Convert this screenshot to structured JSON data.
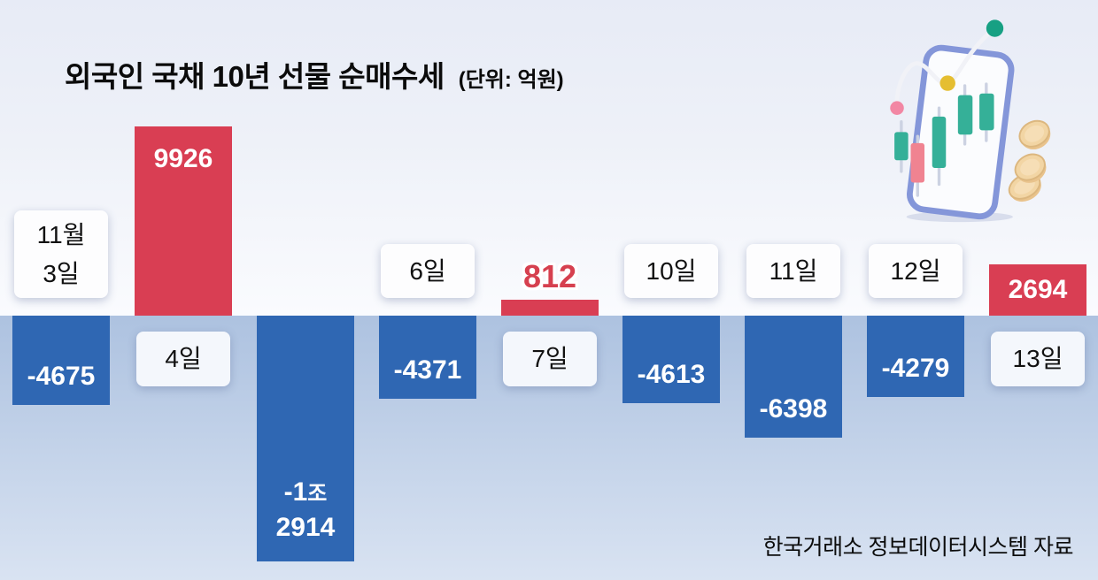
{
  "header": {
    "title": "외국인 국채 10년 선물 순매수세",
    "unit_note": "(단위: 억원)"
  },
  "footer": {
    "source": "한국거래소 정보데이터시스템 자료"
  },
  "colors": {
    "positive_bar": "#d93e53",
    "negative_bar": "#2f67b3",
    "bar_value_text": "#ffffff",
    "outside_value_text": "#d6404f",
    "date_label_text": "#111111",
    "background_top": "#e7ebf6",
    "background_upper_fade": "#fafbfe",
    "background_below_line": "#adc2e0",
    "background_bottom": "#d9e3f2"
  },
  "chart_data": {
    "type": "bar",
    "title": "외국인 국채 10년 선물 순매수세",
    "unit": "억원",
    "categories": [
      "11월 3일",
      "4일",
      "",
      "6일",
      "7일",
      "10일",
      "11일",
      "12일",
      "13일"
    ],
    "values": [
      -4675,
      9926,
      -12914,
      -4371,
      812,
      -4613,
      -6398,
      -4279,
      2694
    ],
    "value_labels": [
      "-4675",
      "9926",
      "-1조 2914",
      "-4371",
      "812",
      "-4613",
      "-6398",
      "-4279",
      "2694"
    ],
    "baseline": 0,
    "ylim": [
      -13000,
      10000
    ],
    "grid": false,
    "legend": false,
    "positive_color": "#d93e53",
    "negative_color": "#2f67b3"
  },
  "bars": [
    {
      "date": "11월 3일",
      "date_lines": [
        "11월",
        "3일"
      ],
      "date_side": "above",
      "value": -4675,
      "value_lines": [
        "-4675"
      ],
      "value_placement": "inside-bottom"
    },
    {
      "date": "4일",
      "date_lines": [
        "4일"
      ],
      "date_side": "below",
      "value": 9926,
      "value_lines": [
        "9926"
      ],
      "value_placement": "inside-top"
    },
    {
      "date": "",
      "date_lines": [],
      "date_side": "none",
      "value": -12914,
      "value_lines": [
        "-1조",
        "2914"
      ],
      "value_placement": "inside-bottom"
    },
    {
      "date": "6일",
      "date_lines": [
        "6일"
      ],
      "date_side": "above",
      "value": -4371,
      "value_lines": [
        "-4371"
      ],
      "value_placement": "inside-bottom"
    },
    {
      "date": "7일",
      "date_lines": [
        "7일"
      ],
      "date_side": "below",
      "value": 812,
      "value_lines": [
        "812"
      ],
      "value_placement": "above"
    },
    {
      "date": "10일",
      "date_lines": [
        "10일"
      ],
      "date_side": "above",
      "value": -4613,
      "value_lines": [
        "-4613"
      ],
      "value_placement": "inside-bottom"
    },
    {
      "date": "11일",
      "date_lines": [
        "11일"
      ],
      "date_side": "above",
      "value": -6398,
      "value_lines": [
        "-6398"
      ],
      "value_placement": "inside-bottom"
    },
    {
      "date": "12일",
      "date_lines": [
        "12일"
      ],
      "date_side": "above",
      "value": -4279,
      "value_lines": [
        "-4279"
      ],
      "value_placement": "inside-bottom"
    },
    {
      "date": "13일",
      "date_lines": [
        "13일"
      ],
      "date_side": "below",
      "value": 2694,
      "value_lines": [
        "2694"
      ],
      "value_placement": "inside-center"
    }
  ]
}
